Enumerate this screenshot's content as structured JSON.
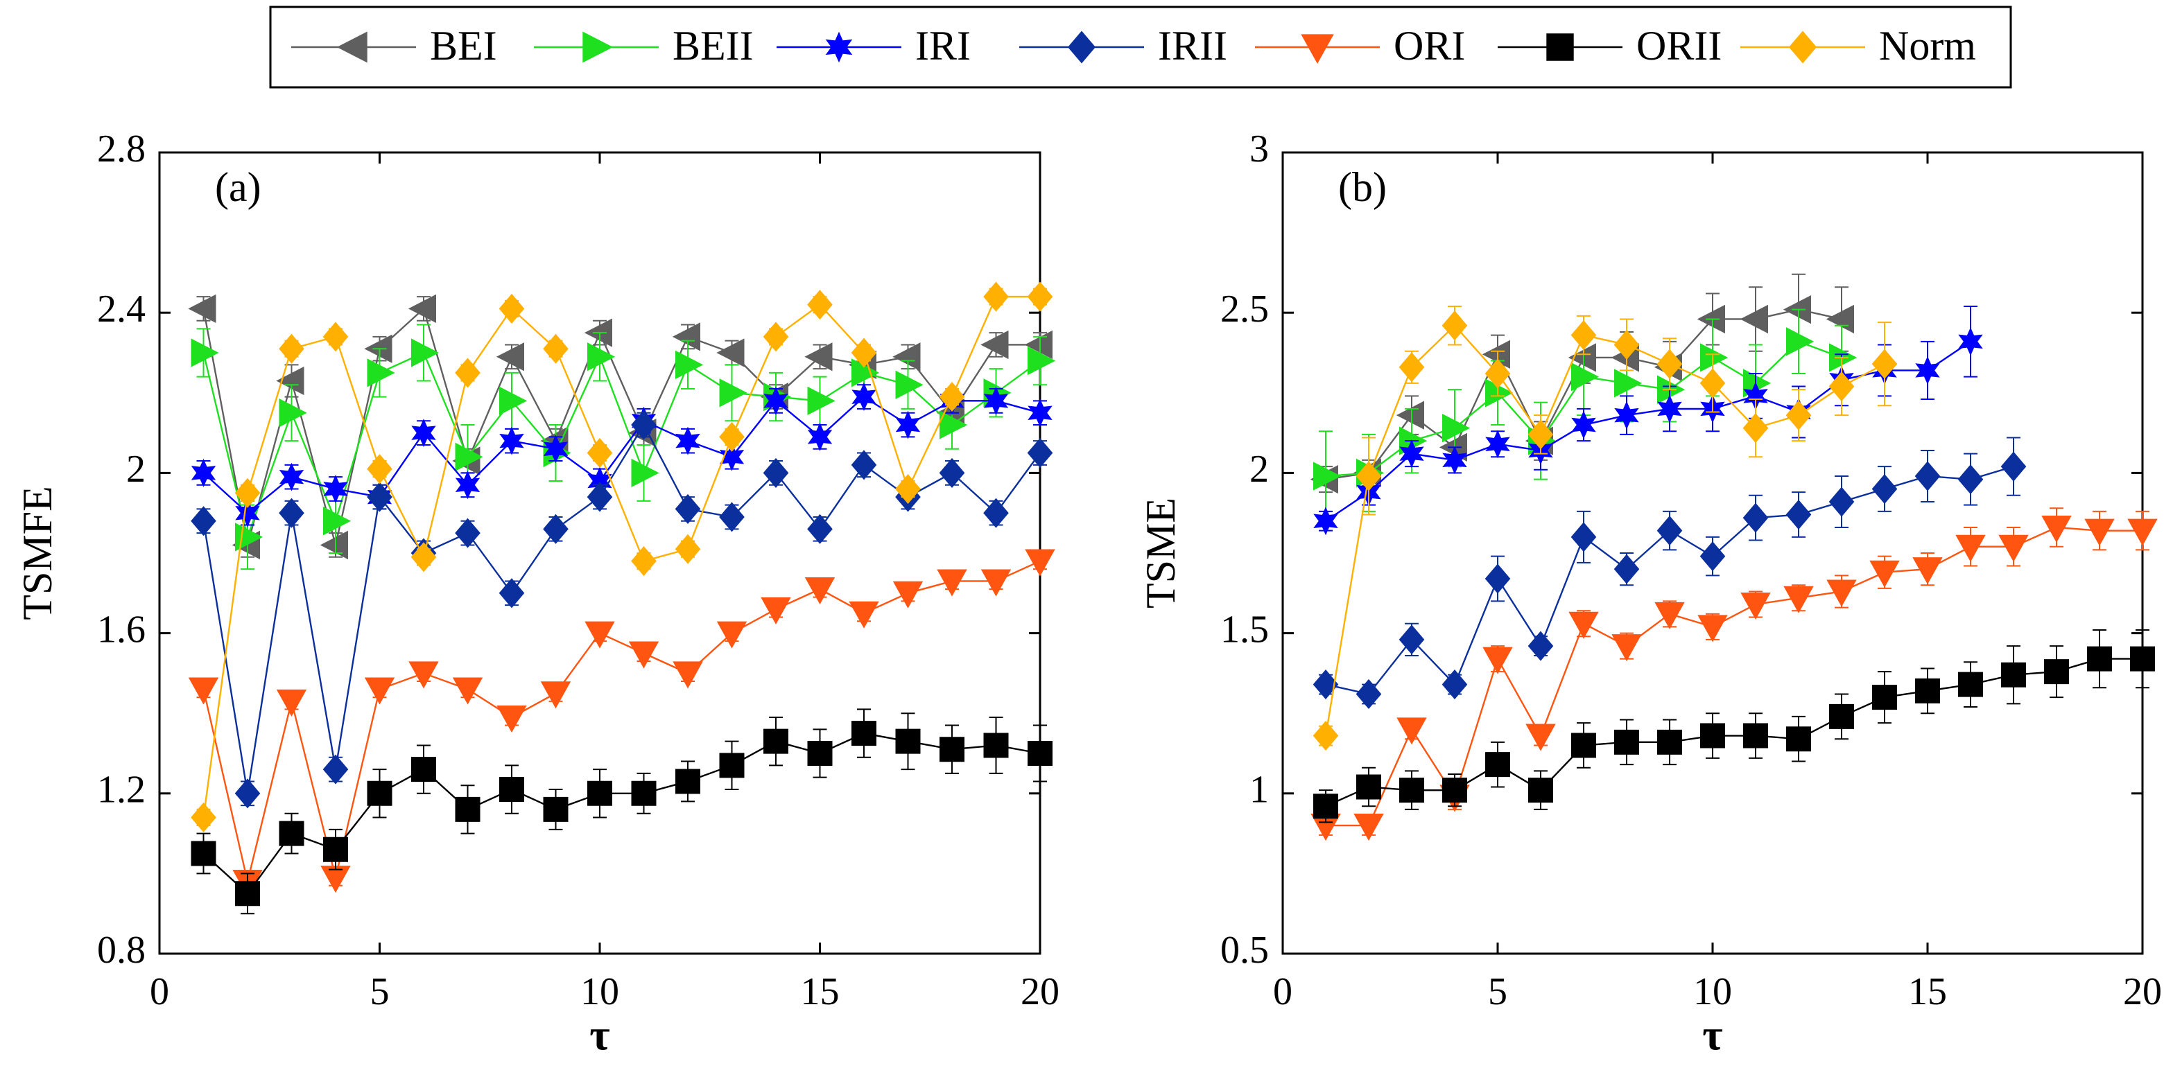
{
  "chart_data": [
    {
      "type": "line",
      "panel_label": "(a)",
      "xlabel": "τ",
      "ylabel": "TSMFE",
      "xlim": [
        0,
        20
      ],
      "xticks": [
        0,
        5,
        10,
        15,
        20
      ],
      "ylim": [
        0.8,
        2.8
      ],
      "yticks": [
        0.8,
        1.2,
        1.6,
        2,
        2.4,
        2.8
      ],
      "x": [
        1,
        2,
        3,
        4,
        5,
        6,
        7,
        8,
        9,
        10,
        11,
        12,
        13,
        14,
        15,
        16,
        17,
        18,
        19,
        20
      ],
      "legend": true,
      "series": [
        {
          "name": "BEI",
          "color": "#5f5f5f",
          "marker": "triangle-left",
          "values": [
            2.41,
            1.82,
            2.23,
            1.82,
            2.31,
            2.41,
            2.03,
            2.29,
            2.08,
            2.35,
            2.1,
            2.34,
            2.3,
            2.19,
            2.29,
            2.27,
            2.29,
            2.15,
            2.32,
            2.32
          ],
          "errors": [
            0.03,
            0.03,
            0.04,
            0.03,
            0.03,
            0.03,
            0.03,
            0.03,
            0.03,
            0.03,
            0.03,
            0.03,
            0.03,
            0.03,
            0.03,
            0.03,
            0.03,
            0.03,
            0.03,
            0.03
          ]
        },
        {
          "name": "BEII",
          "color": "#1fe01f",
          "marker": "triangle-right",
          "values": [
            2.3,
            1.84,
            2.15,
            1.88,
            2.25,
            2.3,
            2.04,
            2.18,
            2.05,
            2.29,
            2.0,
            2.27,
            2.2,
            2.19,
            2.18,
            2.25,
            2.22,
            2.12,
            2.2,
            2.28
          ],
          "errors": [
            0.06,
            0.08,
            0.07,
            0.08,
            0.06,
            0.07,
            0.08,
            0.07,
            0.07,
            0.06,
            0.07,
            0.06,
            0.07,
            0.06,
            0.06,
            0.06,
            0.06,
            0.06,
            0.06,
            0.06
          ]
        },
        {
          "name": "IRI",
          "color": "#0000ff",
          "marker": "star",
          "values": [
            2.0,
            1.9,
            1.99,
            1.96,
            1.94,
            2.1,
            1.97,
            2.08,
            2.06,
            1.98,
            2.13,
            2.08,
            2.04,
            2.18,
            2.09,
            2.19,
            2.12,
            2.18,
            2.18,
            2.15
          ],
          "errors": [
            0.03,
            0.03,
            0.03,
            0.03,
            0.03,
            0.03,
            0.03,
            0.03,
            0.03,
            0.03,
            0.03,
            0.03,
            0.03,
            0.03,
            0.03,
            0.03,
            0.03,
            0.03,
            0.03,
            0.03
          ]
        },
        {
          "name": "IRII",
          "color": "#0b2f9c",
          "marker": "diamond",
          "values": [
            1.88,
            1.2,
            1.9,
            1.26,
            1.94,
            1.8,
            1.85,
            1.7,
            1.86,
            1.94,
            2.12,
            1.91,
            1.89,
            2.0,
            1.86,
            2.02,
            1.94,
            2.0,
            1.9,
            2.05
          ],
          "errors": [
            0.03,
            0.03,
            0.03,
            0.03,
            0.03,
            0.03,
            0.03,
            0.03,
            0.03,
            0.03,
            0.03,
            0.03,
            0.03,
            0.03,
            0.03,
            0.03,
            0.03,
            0.03,
            0.03,
            0.03
          ]
        },
        {
          "name": "ORI",
          "color": "#ff5511",
          "marker": "triangle-down",
          "values": [
            1.46,
            0.98,
            1.43,
            0.99,
            1.46,
            1.5,
            1.46,
            1.39,
            1.45,
            1.6,
            1.55,
            1.5,
            1.6,
            1.66,
            1.71,
            1.65,
            1.7,
            1.73,
            1.73,
            1.78
          ],
          "errors": [
            0.02,
            0.02,
            0.02,
            0.02,
            0.02,
            0.02,
            0.02,
            0.02,
            0.02,
            0.02,
            0.02,
            0.02,
            0.02,
            0.02,
            0.02,
            0.02,
            0.02,
            0.02,
            0.02,
            0.02
          ]
        },
        {
          "name": "ORII",
          "color": "#000000",
          "marker": "square",
          "values": [
            1.05,
            0.95,
            1.1,
            1.06,
            1.2,
            1.26,
            1.16,
            1.21,
            1.16,
            1.2,
            1.2,
            1.23,
            1.27,
            1.33,
            1.3,
            1.35,
            1.33,
            1.31,
            1.32,
            1.3
          ],
          "errors": [
            0.05,
            0.05,
            0.05,
            0.05,
            0.06,
            0.06,
            0.06,
            0.06,
            0.05,
            0.06,
            0.05,
            0.05,
            0.06,
            0.06,
            0.06,
            0.06,
            0.07,
            0.06,
            0.07,
            0.07
          ]
        },
        {
          "name": "Norm",
          "color": "#ffb000",
          "marker": "diamond",
          "values": [
            1.14,
            1.95,
            2.31,
            2.34,
            2.01,
            1.79,
            2.25,
            2.41,
            2.31,
            2.05,
            1.78,
            1.81,
            2.09,
            2.34,
            2.42,
            2.3,
            1.96,
            2.19,
            2.44,
            2.44
          ],
          "errors": [
            0.02,
            0.02,
            0.02,
            0.02,
            0.02,
            0.02,
            0.02,
            0.02,
            0.02,
            0.02,
            0.02,
            0.02,
            0.02,
            0.02,
            0.02,
            0.02,
            0.02,
            0.02,
            0.02,
            0.02
          ]
        }
      ]
    },
    {
      "type": "line",
      "panel_label": "(b)",
      "xlabel": "τ",
      "ylabel": "TSME",
      "xlim": [
        0,
        20
      ],
      "xticks": [
        0,
        5,
        10,
        15,
        20
      ],
      "ylim": [
        0.5,
        3
      ],
      "yticks": [
        0.5,
        1,
        1.5,
        2,
        2.5,
        3
      ],
      "x": [
        1,
        2,
        3,
        4,
        5,
        6,
        7,
        8,
        9,
        10,
        11,
        12,
        13,
        14,
        15,
        16,
        17,
        18,
        19,
        20
      ],
      "legend": false,
      "series": [
        {
          "color": "#5f5f5f",
          "marker": "triangle-left",
          "values": [
            1.98,
            2.0,
            2.18,
            2.08,
            2.37,
            2.1,
            2.36,
            2.36,
            2.33,
            2.48,
            2.48,
            2.51,
            2.48,
            null,
            null,
            null,
            null,
            null,
            null,
            null
          ],
          "errors": [
            0.04,
            0.04,
            0.06,
            0.06,
            0.06,
            0.06,
            0.08,
            0.08,
            0.08,
            0.08,
            0.1,
            0.11,
            0.1,
            null,
            null,
            null,
            null,
            null,
            null,
            null
          ]
        },
        {
          "color": "#1fe01f",
          "marker": "triangle-right",
          "values": [
            1.99,
            2.0,
            2.1,
            2.14,
            2.25,
            2.1,
            2.3,
            2.28,
            2.26,
            2.36,
            2.28,
            2.41,
            2.36,
            null,
            null,
            null,
            null,
            null,
            null,
            null
          ],
          "errors": [
            0.14,
            0.12,
            0.1,
            0.12,
            0.1,
            0.12,
            0.12,
            0.12,
            0.1,
            0.12,
            0.12,
            0.1,
            0.1,
            null,
            null,
            null,
            null,
            null,
            null,
            null
          ]
        },
        {
          "color": "#0000ff",
          "marker": "star",
          "values": [
            1.85,
            1.94,
            2.06,
            2.04,
            2.09,
            2.07,
            2.15,
            2.18,
            2.2,
            2.2,
            2.24,
            2.19,
            2.29,
            2.32,
            2.32,
            2.41,
            null,
            null,
            null,
            null
          ],
          "errors": [
            0.03,
            0.04,
            0.04,
            0.04,
            0.04,
            0.06,
            0.05,
            0.06,
            0.07,
            0.07,
            0.07,
            0.08,
            0.08,
            0.08,
            0.09,
            0.11,
            null,
            null,
            null,
            null
          ]
        },
        {
          "color": "#0b2f9c",
          "marker": "diamond",
          "values": [
            1.34,
            1.31,
            1.48,
            1.34,
            1.67,
            1.46,
            1.8,
            1.7,
            1.82,
            1.74,
            1.86,
            1.87,
            1.91,
            1.95,
            1.99,
            1.98,
            2.02,
            null,
            null,
            null
          ],
          "errors": [
            0.03,
            0.03,
            0.05,
            0.03,
            0.07,
            0.03,
            0.08,
            0.05,
            0.06,
            0.06,
            0.07,
            0.07,
            0.08,
            0.07,
            0.08,
            0.08,
            0.09,
            null,
            null,
            null
          ]
        },
        {
          "color": "#ff5511",
          "marker": "triangle-down",
          "values": [
            0.9,
            0.9,
            1.2,
            0.99,
            1.42,
            1.18,
            1.53,
            1.46,
            1.56,
            1.52,
            1.59,
            1.61,
            1.63,
            1.69,
            1.7,
            1.77,
            1.77,
            1.83,
            1.82,
            1.82
          ],
          "errors": [
            0.03,
            0.03,
            0.03,
            0.04,
            0.04,
            0.03,
            0.04,
            0.04,
            0.04,
            0.04,
            0.04,
            0.04,
            0.05,
            0.05,
            0.05,
            0.06,
            0.06,
            0.06,
            0.06,
            0.06
          ]
        },
        {
          "color": "#000000",
          "marker": "square",
          "values": [
            0.96,
            1.02,
            1.01,
            1.01,
            1.09,
            1.01,
            1.15,
            1.16,
            1.16,
            1.18,
            1.18,
            1.17,
            1.24,
            1.3,
            1.32,
            1.34,
            1.37,
            1.38,
            1.42,
            1.42
          ],
          "errors": [
            0.05,
            0.06,
            0.06,
            0.05,
            0.07,
            0.06,
            0.07,
            0.07,
            0.07,
            0.07,
            0.07,
            0.07,
            0.07,
            0.08,
            0.07,
            0.07,
            0.09,
            0.08,
            0.09,
            0.09
          ]
        },
        {
          "color": "#ffb000",
          "marker": "diamond",
          "values": [
            1.18,
            1.99,
            2.33,
            2.46,
            2.31,
            2.12,
            2.43,
            2.4,
            2.34,
            2.28,
            2.14,
            2.18,
            2.27,
            2.34,
            null,
            null,
            null,
            null,
            null,
            null
          ],
          "errors": [
            0.03,
            0.12,
            0.05,
            0.06,
            0.07,
            0.06,
            0.06,
            0.08,
            0.08,
            0.09,
            0.09,
            0.08,
            0.09,
            0.13,
            null,
            null,
            null,
            null,
            null,
            null
          ]
        }
      ]
    }
  ]
}
